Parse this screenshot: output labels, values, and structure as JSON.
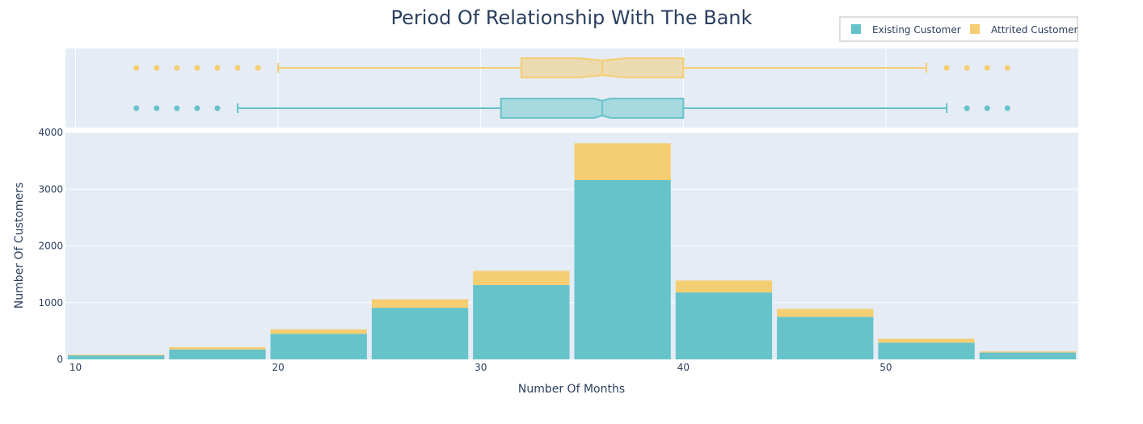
{
  "chart_data": {
    "type": "bar",
    "title": "Period Of Relationship With The Bank",
    "xlabel": "Number Of Months",
    "ylabel": "Number Of Customers",
    "barmode": "stack",
    "xlim": [
      9.5,
      59.5
    ],
    "ylim": [
      0,
      4000
    ],
    "x_ticks": [
      10,
      20,
      30,
      40,
      50
    ],
    "y_ticks": [
      0,
      1000,
      2000,
      3000,
      4000
    ],
    "bins": [
      [
        9.5,
        14.5
      ],
      [
        14.5,
        19.5
      ],
      [
        19.5,
        24.5
      ],
      [
        24.5,
        29.5
      ],
      [
        29.5,
        34.5
      ],
      [
        34.5,
        39.5
      ],
      [
        39.5,
        44.5
      ],
      [
        44.5,
        49.5
      ],
      [
        49.5,
        54.5
      ],
      [
        54.5,
        59.5
      ]
    ],
    "series": [
      {
        "name": "Existing Customer",
        "color": "#66c3ca",
        "values": [
          70,
          175,
          450,
          910,
          1310,
          3160,
          1180,
          750,
          295,
          120
        ]
      },
      {
        "name": "Attrited Customer",
        "color": "#f5ce72",
        "values": [
          15,
          40,
          80,
          150,
          250,
          650,
          210,
          140,
          70,
          20
        ]
      }
    ],
    "legend": {
      "placement": "top-right",
      "orientation": "horizontal"
    },
    "grid": true,
    "marginal_box": [
      {
        "name": "Attrited Customer",
        "color": "#f5ce72",
        "fill": "#ecdbb0",
        "min_whisker": 20,
        "q1": 32,
        "median": 36,
        "q3": 40,
        "max_whisker": 52,
        "notch": [
          34.8,
          37.2
        ],
        "outliers": [
          13,
          14,
          15,
          16,
          17,
          18,
          19,
          53,
          54,
          55,
          56
        ]
      },
      {
        "name": "Existing Customer",
        "color": "#66c3ca",
        "fill": "#a7d9e0",
        "min_whisker": 18,
        "q1": 31,
        "median": 36,
        "q3": 40,
        "max_whisker": 53,
        "notch": [
          35.6,
          36.4
        ],
        "outliers": [
          13,
          14,
          15,
          16,
          17,
          54,
          55,
          56
        ]
      }
    ]
  }
}
